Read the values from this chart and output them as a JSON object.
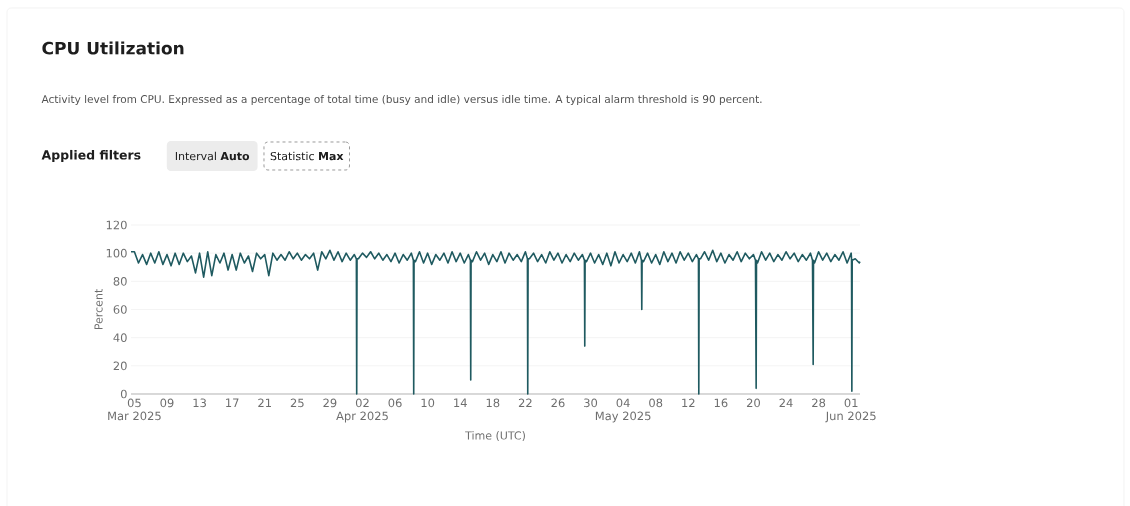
{
  "chart_data": {
    "type": "line",
    "title": "CPU Utilization",
    "subtitle": "Activity level from CPU. Expressed as a percentage of total time (busy and idle) versus idle time. A typical alarm threshold is 90 percent.",
    "annotations": [
      "Applied filters",
      "Interval **Auto**",
      "Statistic **Max**"
    ],
    "xlabel": "Time (UTC)",
    "ylabel": "Percent",
    "xlim": [
      "2025-03-04T14:00",
      "2025-06-02T02:00"
    ],
    "ylim": [
      0,
      120
    ],
    "yticks": [
      0,
      20,
      40,
      60,
      80,
      100,
      120
    ],
    "xticks": [
      {
        "value": "2025-03-05",
        "label": "05"
      },
      {
        "value": "2025-03-09",
        "label": "09"
      },
      {
        "value": "2025-03-13",
        "label": "13"
      },
      {
        "value": "2025-03-17",
        "label": "17"
      },
      {
        "value": "2025-03-21",
        "label": "21"
      },
      {
        "value": "2025-03-25",
        "label": "25"
      },
      {
        "value": "2025-03-29",
        "label": "29"
      },
      {
        "value": "2025-04-02",
        "label": "02"
      },
      {
        "value": "2025-04-06",
        "label": "06"
      },
      {
        "value": "2025-04-10",
        "label": "10"
      },
      {
        "value": "2025-04-14",
        "label": "14"
      },
      {
        "value": "2025-04-18",
        "label": "18"
      },
      {
        "value": "2025-04-22",
        "label": "22"
      },
      {
        "value": "2025-04-26",
        "label": "26"
      },
      {
        "value": "2025-04-30",
        "label": "30"
      },
      {
        "value": "2025-05-04",
        "label": "04"
      },
      {
        "value": "2025-05-08",
        "label": "08"
      },
      {
        "value": "2025-05-12",
        "label": "12"
      },
      {
        "value": "2025-05-16",
        "label": "16"
      },
      {
        "value": "2025-05-20",
        "label": "20"
      },
      {
        "value": "2025-05-24",
        "label": "24"
      },
      {
        "value": "2025-05-28",
        "label": "28"
      },
      {
        "value": "2025-06-01",
        "label": "01"
      }
    ],
    "x2lim": [
      "2025-03-04T14:00",
      "2025-06-02T02:00"
    ],
    "x2ticks": [
      {
        "value": "2025-03-05",
        "label": "Mar 2025"
      },
      {
        "value": "2025-04-02",
        "label": "Apr 2025"
      },
      {
        "value": "2025-05-04",
        "label": "May 2025"
      },
      {
        "value": "2025-06-01",
        "label": "Jun 2025"
      }
    ],
    "grid": "y",
    "marker": "none",
    "line_style": "solid",
    "series": [
      {
        "color": "#1f5a60",
        "x": [
          "2025-03-04T14:00",
          "2025-03-05T00:00",
          "2025-03-05T12:00",
          "2025-03-06T00:00",
          "2025-03-06T12:00",
          "2025-03-07T00:00",
          "2025-03-07T12:00",
          "2025-03-08T00:00",
          "2025-03-08T12:00",
          "2025-03-09T00:00",
          "2025-03-09T12:00",
          "2025-03-10T00:00",
          "2025-03-10T12:00",
          "2025-03-11T00:00",
          "2025-03-11T12:00",
          "2025-03-12T00:00",
          "2025-03-12T12:00",
          "2025-03-13T00:00",
          "2025-03-13T12:00",
          "2025-03-14T00:00",
          "2025-03-14T12:00",
          "2025-03-15T00:00",
          "2025-03-15T12:00",
          "2025-03-16T00:00",
          "2025-03-16T12:00",
          "2025-03-17T00:00",
          "2025-03-17T12:00",
          "2025-03-18T00:00",
          "2025-03-18T12:00",
          "2025-03-19T00:00",
          "2025-03-19T12:00",
          "2025-03-20T00:00",
          "2025-03-20T12:00",
          "2025-03-21T00:00",
          "2025-03-21T12:00",
          "2025-03-22T00:00",
          "2025-03-22T12:00",
          "2025-03-23T00:00",
          "2025-03-23T12:00",
          "2025-03-24T00:00",
          "2025-03-24T12:00",
          "2025-03-25T00:00",
          "2025-03-25T12:00",
          "2025-03-26T00:00",
          "2025-03-26T12:00",
          "2025-03-27T00:00",
          "2025-03-27T12:00",
          "2025-03-28T00:00",
          "2025-03-28T12:00",
          "2025-03-29T00:00",
          "2025-03-29T12:00",
          "2025-03-30T00:00",
          "2025-03-30T12:00",
          "2025-03-31T00:00",
          "2025-03-31T12:00",
          "2025-04-01T00:00",
          "2025-04-01T06:00",
          "2025-04-01T07:00",
          "2025-04-01T08:00",
          "2025-04-01T12:00",
          "2025-04-02T00:00",
          "2025-04-02T12:00",
          "2025-04-03T00:00",
          "2025-04-03T12:00",
          "2025-04-04T00:00",
          "2025-04-04T12:00",
          "2025-04-05T00:00",
          "2025-04-05T12:00",
          "2025-04-06T00:00",
          "2025-04-06T12:00",
          "2025-04-07T00:00",
          "2025-04-07T12:00",
          "2025-04-08T00:00",
          "2025-04-08T06:00",
          "2025-04-08T07:00",
          "2025-04-08T08:00",
          "2025-04-08T12:00",
          "2025-04-09T00:00",
          "2025-04-09T12:00",
          "2025-04-10T00:00",
          "2025-04-10T12:00",
          "2025-04-11T00:00",
          "2025-04-11T12:00",
          "2025-04-12T00:00",
          "2025-04-12T12:00",
          "2025-04-13T00:00",
          "2025-04-13T12:00",
          "2025-04-14T00:00",
          "2025-04-14T12:00",
          "2025-04-15T00:00",
          "2025-04-15T06:00",
          "2025-04-15T07:00",
          "2025-04-15T08:00",
          "2025-04-15T12:00",
          "2025-04-16T00:00",
          "2025-04-16T12:00",
          "2025-04-17T00:00",
          "2025-04-17T12:00",
          "2025-04-18T00:00",
          "2025-04-18T12:00",
          "2025-04-19T00:00",
          "2025-04-19T12:00",
          "2025-04-20T00:00",
          "2025-04-20T12:00",
          "2025-04-21T00:00",
          "2025-04-21T12:00",
          "2025-04-22T00:00",
          "2025-04-22T06:00",
          "2025-04-22T07:00",
          "2025-04-22T08:00",
          "2025-04-22T12:00",
          "2025-04-23T00:00",
          "2025-04-23T12:00",
          "2025-04-24T00:00",
          "2025-04-24T12:00",
          "2025-04-25T00:00",
          "2025-04-25T12:00",
          "2025-04-26T00:00",
          "2025-04-26T12:00",
          "2025-04-27T00:00",
          "2025-04-27T12:00",
          "2025-04-28T00:00",
          "2025-04-28T12:00",
          "2025-04-29T00:00",
          "2025-04-29T06:00",
          "2025-04-29T07:00",
          "2025-04-29T08:00",
          "2025-04-29T12:00",
          "2025-04-30T00:00",
          "2025-04-30T12:00",
          "2025-05-01T00:00",
          "2025-05-01T12:00",
          "2025-05-02T00:00",
          "2025-05-02T12:00",
          "2025-05-03T00:00",
          "2025-05-03T12:00",
          "2025-05-04T00:00",
          "2025-05-04T12:00",
          "2025-05-05T00:00",
          "2025-05-05T12:00",
          "2025-05-06T00:00",
          "2025-05-06T06:00",
          "2025-05-06T07:00",
          "2025-05-06T08:00",
          "2025-05-06T12:00",
          "2025-05-07T00:00",
          "2025-05-07T12:00",
          "2025-05-08T00:00",
          "2025-05-08T12:00",
          "2025-05-09T00:00",
          "2025-05-09T12:00",
          "2025-05-10T00:00",
          "2025-05-10T12:00",
          "2025-05-11T00:00",
          "2025-05-11T12:00",
          "2025-05-12T00:00",
          "2025-05-12T12:00",
          "2025-05-13T00:00",
          "2025-05-13T06:00",
          "2025-05-13T07:00",
          "2025-05-13T08:00",
          "2025-05-13T12:00",
          "2025-05-14T00:00",
          "2025-05-14T12:00",
          "2025-05-15T00:00",
          "2025-05-15T12:00",
          "2025-05-16T00:00",
          "2025-05-16T12:00",
          "2025-05-17T00:00",
          "2025-05-17T12:00",
          "2025-05-18T00:00",
          "2025-05-18T12:00",
          "2025-05-19T00:00",
          "2025-05-19T12:00",
          "2025-05-20T00:00",
          "2025-05-20T06:00",
          "2025-05-20T08:00",
          "2025-05-20T09:00",
          "2025-05-20T12:00",
          "2025-05-21T00:00",
          "2025-05-21T12:00",
          "2025-05-22T00:00",
          "2025-05-22T12:00",
          "2025-05-23T00:00",
          "2025-05-23T12:00",
          "2025-05-24T00:00",
          "2025-05-24T12:00",
          "2025-05-25T00:00",
          "2025-05-25T12:00",
          "2025-05-26T00:00",
          "2025-05-26T12:00",
          "2025-05-27T00:00",
          "2025-05-27T06:00",
          "2025-05-27T08:00",
          "2025-05-27T09:00",
          "2025-05-27T12:00",
          "2025-05-28T00:00",
          "2025-05-28T12:00",
          "2025-05-29T00:00",
          "2025-05-29T12:00",
          "2025-05-30T00:00",
          "2025-05-30T12:00",
          "2025-05-31T00:00",
          "2025-05-31T12:00",
          "2025-06-01T00:00",
          "2025-06-01T01:00",
          "2025-06-01T02:00",
          "2025-06-01T03:00",
          "2025-06-01T12:00",
          "2025-06-02T00:00",
          "2025-06-02T02:00"
        ],
        "values": [
          101,
          101,
          93,
          99,
          92,
          100,
          93,
          101,
          92,
          99,
          91,
          100,
          92,
          100,
          94,
          98,
          86,
          100,
          83,
          101,
          84,
          99,
          93,
          100,
          88,
          99,
          88,
          100,
          93,
          98,
          87,
          100,
          96,
          99,
          84,
          100,
          95,
          99,
          95,
          101,
          96,
          100,
          95,
          99,
          96,
          100,
          88,
          101,
          96,
          102,
          95,
          101,
          94,
          100,
          95,
          99,
          96,
          0,
          96,
          96,
          100,
          97,
          101,
          96,
          100,
          95,
          99,
          94,
          100,
          93,
          99,
          95,
          100,
          95,
          0,
          95,
          94,
          101,
          93,
          100,
          92,
          99,
          95,
          100,
          93,
          101,
          94,
          100,
          93,
          99,
          95,
          10,
          95,
          94,
          101,
          95,
          100,
          92,
          99,
          94,
          101,
          93,
          100,
          95,
          99,
          94,
          101,
          96,
          0,
          96,
          96,
          100,
          94,
          99,
          93,
          101,
          95,
          100,
          93,
          99,
          94,
          100,
          95,
          99,
          95,
          34,
          95,
          94,
          100,
          93,
          99,
          92,
          100,
          91,
          101,
          93,
          99,
          94,
          100,
          93,
          101,
          95,
          60,
          95,
          94,
          100,
          93,
          99,
          92,
          101,
          94,
          100,
          93,
          101,
          95,
          100,
          94,
          99,
          96,
          0,
          96,
          96,
          101,
          95,
          102,
          94,
          100,
          93,
          99,
          95,
          101,
          94,
          100,
          96,
          99,
          95,
          4,
          95,
          93,
          101,
          95,
          100,
          94,
          99,
          95,
          101,
          96,
          100,
          94,
          99,
          95,
          100,
          95,
          21,
          95,
          93,
          101,
          95,
          100,
          94,
          99,
          95,
          101,
          93,
          100,
          96,
          2,
          95,
          96,
          93,
          94
        ]
      }
    ]
  }
}
